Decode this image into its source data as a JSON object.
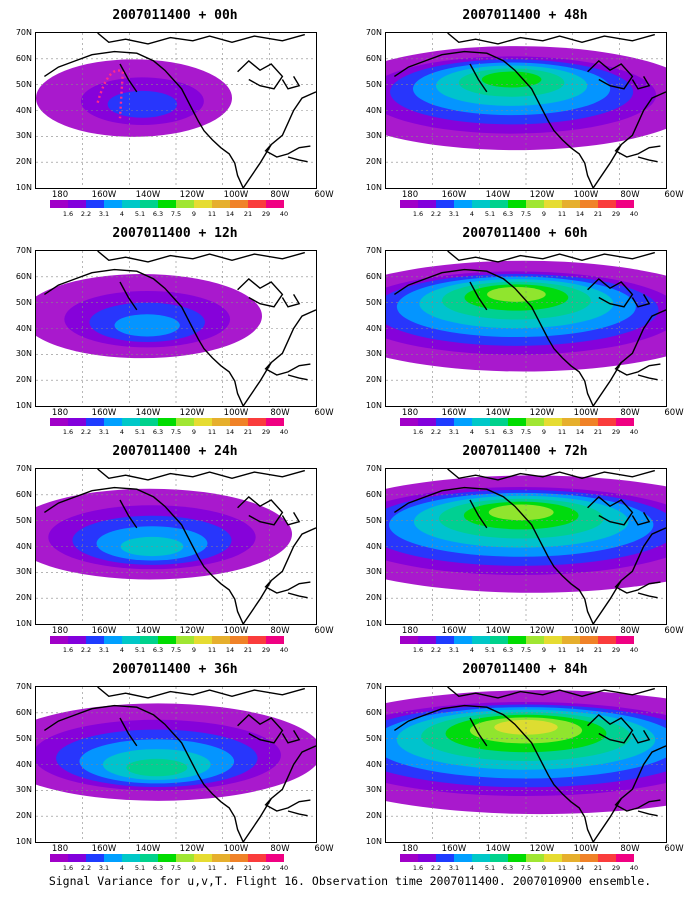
{
  "caption": "Signal Variance for u,v,T. Flight 16. Observation time 2007011400. 2007010900 ensemble.",
  "latitude_labels": [
    "70N",
    "60N",
    "50N",
    "40N",
    "30N",
    "20N",
    "10N"
  ],
  "longitude_labels": [
    "180",
    "160W",
    "140W",
    "120W",
    "100W",
    "80W",
    "60W"
  ],
  "colorbar": {
    "colors": [
      "#a000c8",
      "#8200dc",
      "#1e3cff",
      "#00a0ff",
      "#00c8c8",
      "#00d28c",
      "#00dc00",
      "#a0e632",
      "#e6dc32",
      "#e6af2d",
      "#f08228",
      "#fa3c3c",
      "#f00082"
    ],
    "labels": [
      "1.6",
      "2.2",
      "3.1",
      "4",
      "5.1",
      "6.3",
      "7.5",
      "9",
      "11",
      "14",
      "21",
      "29",
      "40"
    ]
  },
  "panels": [
    {
      "title": "2007011400 + 00h",
      "column": 0,
      "row": 0,
      "intensity": 0
    },
    {
      "title": "2007011400 + 12h",
      "column": 0,
      "row": 1,
      "intensity": 1
    },
    {
      "title": "2007011400 + 24h",
      "column": 0,
      "row": 2,
      "intensity": 2
    },
    {
      "title": "2007011400 + 36h",
      "column": 0,
      "row": 3,
      "intensity": 3
    },
    {
      "title": "2007011400 + 48h",
      "column": 1,
      "row": 0,
      "intensity": 4
    },
    {
      "title": "2007011400 + 60h",
      "column": 1,
      "row": 1,
      "intensity": 5
    },
    {
      "title": "2007011400 + 72h",
      "column": 1,
      "row": 2,
      "intensity": 6
    },
    {
      "title": "2007011400 + 84h",
      "column": 1,
      "row": 3,
      "intensity": 7
    }
  ]
}
